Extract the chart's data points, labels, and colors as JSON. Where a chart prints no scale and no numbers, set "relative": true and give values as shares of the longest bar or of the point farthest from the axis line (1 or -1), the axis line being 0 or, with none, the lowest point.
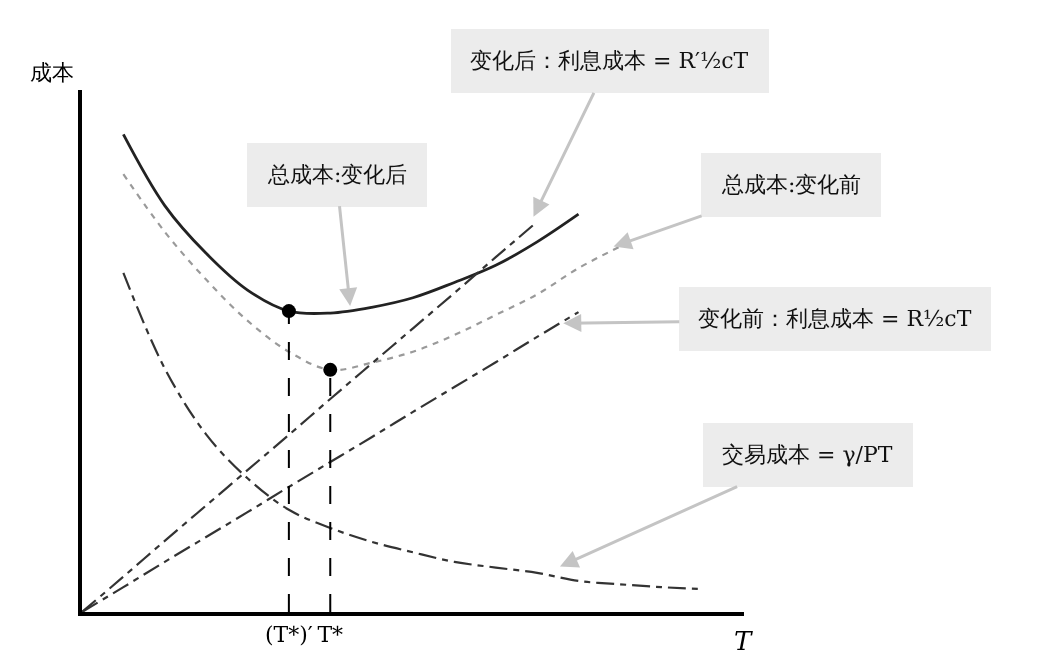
{
  "chart_data": {
    "type": "line",
    "relative": true,
    "xlabel": "T",
    "ylabel": "成本",
    "categories": [
      null,
      null,
      null,
      null,
      null,
      "(T*)′",
      "T*",
      null,
      null,
      null,
      null,
      null,
      null,
      null,
      null,
      null,
      null
    ],
    "series": [
      {
        "color": "#222222",
        "line_style": "solid",
        "values": [
          null,
          1.0,
          0.851,
          0.751,
          0.674,
          0.63,
          0.626,
          0.638,
          0.658,
          0.69,
          0.726,
          0.775,
          0.833,
          null,
          null,
          null,
          null
        ]
      },
      {
        "color": "#9a9a9a",
        "line_style": "dotted",
        "values": [
          null,
          0.917,
          0.796,
          0.696,
          0.61,
          0.545,
          0.507,
          0.522,
          0.545,
          0.58,
          0.622,
          0.665,
          0.72,
          0.765,
          null,
          null,
          null
        ]
      },
      {
        "color": "#333333",
        "line_style": "dashdot",
        "values": [
          null,
          0.71,
          0.51,
          0.372,
          0.28,
          0.214,
          0.176,
          0.147,
          0.125,
          0.105,
          0.093,
          0.082,
          0.065,
          0.058,
          0.052,
          0.048,
          null
        ]
      },
      {
        "color": "#333333",
        "line_style": "dashdot",
        "values": [
          0,
          0.074,
          0.149,
          0.223,
          0.297,
          0.371,
          0.446,
          0.52,
          0.594,
          0.668,
          0.743,
          0.817,
          null,
          null,
          null,
          null,
          null
        ]
      },
      {
        "color": "#333333",
        "line_style": "dashdot",
        "values": [
          0,
          0.052,
          0.105,
          0.157,
          0.209,
          0.262,
          0.314,
          0.366,
          0.419,
          0.471,
          0.523,
          0.576,
          0.628,
          null,
          null,
          null,
          null
        ]
      },
      {
        "type": "lollipop",
        "marker": "circle",
        "line_style": "dashed",
        "color": "#000000",
        "values": [
          null,
          null,
          null,
          null,
          null,
          0.63,
          0.507,
          null,
          null,
          null,
          null,
          null,
          null,
          null,
          null,
          null,
          null
        ]
      }
    ],
    "annotations": [
      "变化后：利息成本 = R′½cT",
      "总成本:变化后",
      "总成本:变化前",
      "变化前：利息成本 = R½cT",
      "交易成本 = γ/PT"
    ]
  }
}
